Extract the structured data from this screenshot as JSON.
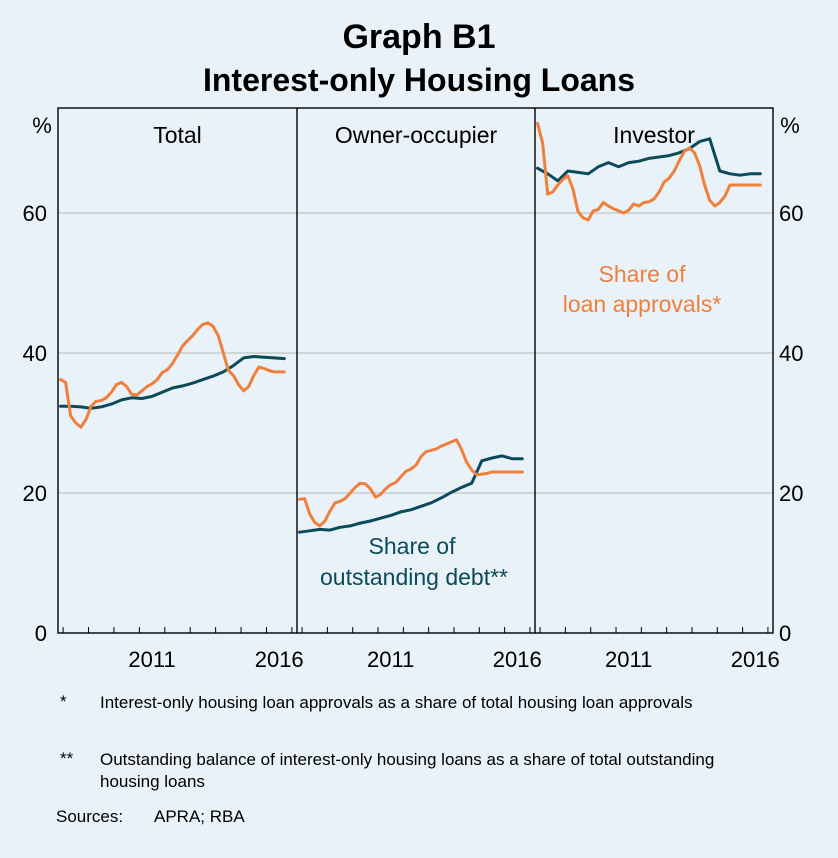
{
  "title": "Graph B1",
  "subtitle": "Interest-only Housing Loans",
  "chart_data": {
    "type": "line",
    "y_unit_left": "%",
    "y_unit_right": "%",
    "ylim": [
      0,
      75
    ],
    "yticks": [
      0,
      20,
      40,
      60
    ],
    "xlim": [
      2007.8,
      2017.2
    ],
    "xticks": [
      2011,
      2016
    ],
    "series_colors": {
      "approvals": "#f07f3c",
      "outstanding": "#0b4a58"
    },
    "panels": [
      {
        "name": "Total",
        "series": [
          {
            "name": "approvals",
            "x": [
              2007.9,
              2008.1,
              2008.3,
              2008.5,
              2008.7,
              2008.9,
              2009.1,
              2009.3,
              2009.5,
              2009.7,
              2009.9,
              2010.1,
              2010.3,
              2010.5,
              2010.7,
              2010.9,
              2011.1,
              2011.3,
              2011.5,
              2011.7,
              2011.9,
              2012.1,
              2012.3,
              2012.5,
              2012.7,
              2012.9,
              2013.1,
              2013.3,
              2013.5,
              2013.7,
              2013.9,
              2014.1,
              2014.3,
              2014.5,
              2014.7,
              2014.9,
              2015.1,
              2015.3,
              2015.5,
              2015.7,
              2015.9,
              2016.1,
              2016.3,
              2016.5,
              2016.7
            ],
            "values": [
              36.2,
              35.8,
              31.0,
              30.0,
              29.4,
              30.5,
              32.4,
              33.1,
              33.2,
              33.6,
              34.4,
              35.5,
              35.8,
              35.2,
              34.1,
              34.0,
              34.6,
              35.2,
              35.6,
              36.2,
              37.2,
              37.6,
              38.5,
              39.7,
              41.0,
              41.8,
              42.5,
              43.4,
              44.1,
              44.3,
              43.8,
              42.5,
              40.0,
              37.5,
              36.8,
              35.5,
              34.6,
              35.2,
              36.8,
              38.0,
              37.8,
              37.5,
              37.3,
              37.3,
              37.3
            ]
          },
          {
            "name": "outstanding",
            "x": [
              2007.9,
              2008.3,
              2008.7,
              2009.1,
              2009.5,
              2009.9,
              2010.3,
              2010.7,
              2011.1,
              2011.5,
              2011.9,
              2012.3,
              2012.7,
              2013.1,
              2013.5,
              2013.9,
              2014.3,
              2014.7,
              2015.1,
              2015.5,
              2015.9,
              2016.3,
              2016.7
            ],
            "values": [
              32.4,
              32.4,
              32.3,
              32.1,
              32.3,
              32.7,
              33.3,
              33.6,
              33.5,
              33.8,
              34.4,
              35.0,
              35.3,
              35.7,
              36.2,
              36.7,
              37.3,
              38.2,
              39.3,
              39.5,
              39.4,
              39.3,
              39.2
            ]
          }
        ]
      },
      {
        "name": "Owner-occupier",
        "series": [
          {
            "name": "approvals",
            "x": [
              2007.9,
              2008.1,
              2008.3,
              2008.5,
              2008.7,
              2008.9,
              2009.1,
              2009.3,
              2009.5,
              2009.7,
              2009.9,
              2010.1,
              2010.3,
              2010.5,
              2010.7,
              2010.9,
              2011.1,
              2011.3,
              2011.5,
              2011.7,
              2011.9,
              2012.1,
              2012.3,
              2012.5,
              2012.7,
              2012.9,
              2013.1,
              2013.3,
              2013.5,
              2013.7,
              2013.9,
              2014.1,
              2014.3,
              2014.5,
              2014.7,
              2014.9,
              2015.1,
              2015.3,
              2015.5,
              2015.7,
              2015.9,
              2016.1,
              2016.3,
              2016.5,
              2016.7
            ],
            "values": [
              19.1,
              19.2,
              17.0,
              15.8,
              15.3,
              16.0,
              17.4,
              18.6,
              18.8,
              19.2,
              20.0,
              20.8,
              21.4,
              21.3,
              20.6,
              19.4,
              19.8,
              20.6,
              21.2,
              21.5,
              22.3,
              23.1,
              23.4,
              24.0,
              25.2,
              25.9,
              26.1,
              26.3,
              26.7,
              27.0,
              27.3,
              27.6,
              26.2,
              24.4,
              23.3,
              22.6,
              22.7,
              22.8,
              23.0,
              23.0,
              23.0,
              23.0,
              23.0,
              23.0,
              23.0
            ]
          },
          {
            "name": "outstanding",
            "x": [
              2007.9,
              2008.3,
              2008.7,
              2009.1,
              2009.5,
              2009.9,
              2010.3,
              2010.7,
              2011.1,
              2011.5,
              2011.9,
              2012.3,
              2012.7,
              2013.1,
              2013.5,
              2013.9,
              2014.3,
              2014.7,
              2015.1,
              2015.5,
              2015.9,
              2016.3,
              2016.7
            ],
            "values": [
              14.4,
              14.6,
              14.8,
              14.7,
              15.1,
              15.3,
              15.7,
              16.0,
              16.4,
              16.8,
              17.3,
              17.6,
              18.1,
              18.6,
              19.3,
              20.1,
              20.8,
              21.4,
              24.6,
              25.0,
              25.3,
              24.9,
              24.9
            ]
          }
        ]
      },
      {
        "name": "Investor",
        "series": [
          {
            "name": "approvals",
            "x": [
              2007.9,
              2008.1,
              2008.3,
              2008.5,
              2008.7,
              2008.9,
              2009.1,
              2009.3,
              2009.5,
              2009.7,
              2009.9,
              2010.1,
              2010.3,
              2010.5,
              2010.7,
              2010.9,
              2011.1,
              2011.3,
              2011.5,
              2011.7,
              2011.9,
              2012.1,
              2012.3,
              2012.5,
              2012.7,
              2012.9,
              2013.1,
              2013.3,
              2013.5,
              2013.7,
              2013.9,
              2014.1,
              2014.3,
              2014.5,
              2014.7,
              2014.9,
              2015.1,
              2015.3,
              2015.5,
              2015.7,
              2015.9,
              2016.1,
              2016.3,
              2016.5,
              2016.7
            ],
            "values": [
              72.8,
              70.0,
              62.7,
              63.0,
              64.0,
              64.8,
              65.3,
              63.4,
              60.2,
              59.3,
              59.0,
              60.3,
              60.5,
              61.5,
              61.0,
              60.6,
              60.3,
              60.0,
              60.4,
              61.3,
              61.0,
              61.5,
              61.6,
              62.0,
              63.0,
              64.4,
              65.0,
              66.0,
              67.5,
              68.8,
              69.3,
              68.6,
              66.8,
              64.0,
              61.8,
              61.0,
              61.5,
              62.4,
              64.0,
              64.0,
              64.0,
              64.0,
              64.0,
              64.0,
              64.0
            ]
          },
          {
            "name": "outstanding",
            "x": [
              2007.9,
              2008.3,
              2008.7,
              2009.1,
              2009.5,
              2009.9,
              2010.3,
              2010.7,
              2011.1,
              2011.5,
              2011.9,
              2012.3,
              2012.7,
              2013.1,
              2013.5,
              2013.9,
              2014.3,
              2014.7,
              2015.1,
              2015.5,
              2015.9,
              2016.3,
              2016.7
            ],
            "values": [
              66.4,
              65.6,
              64.6,
              66.0,
              65.8,
              65.6,
              66.6,
              67.2,
              66.6,
              67.2,
              67.4,
              67.8,
              68.0,
              68.2,
              68.6,
              69.2,
              70.2,
              70.6,
              66.0,
              65.6,
              65.4,
              65.6,
              65.6
            ]
          }
        ]
      }
    ],
    "annotations": {
      "approvals_label_line1": "Share of",
      "approvals_label_line2": "loan approvals*",
      "outstanding_label_line1": "Share of",
      "outstanding_label_line2": "outstanding debt**"
    }
  },
  "footnotes": [
    {
      "mark": "*",
      "text": "Interest-only housing loan approvals as a share of total housing loan approvals"
    },
    {
      "mark": "**",
      "text": "Outstanding balance of interest-only housing loans as a share of total outstanding housing loans"
    }
  ],
  "sources_label": "Sources:",
  "sources_text": "APRA; RBA"
}
